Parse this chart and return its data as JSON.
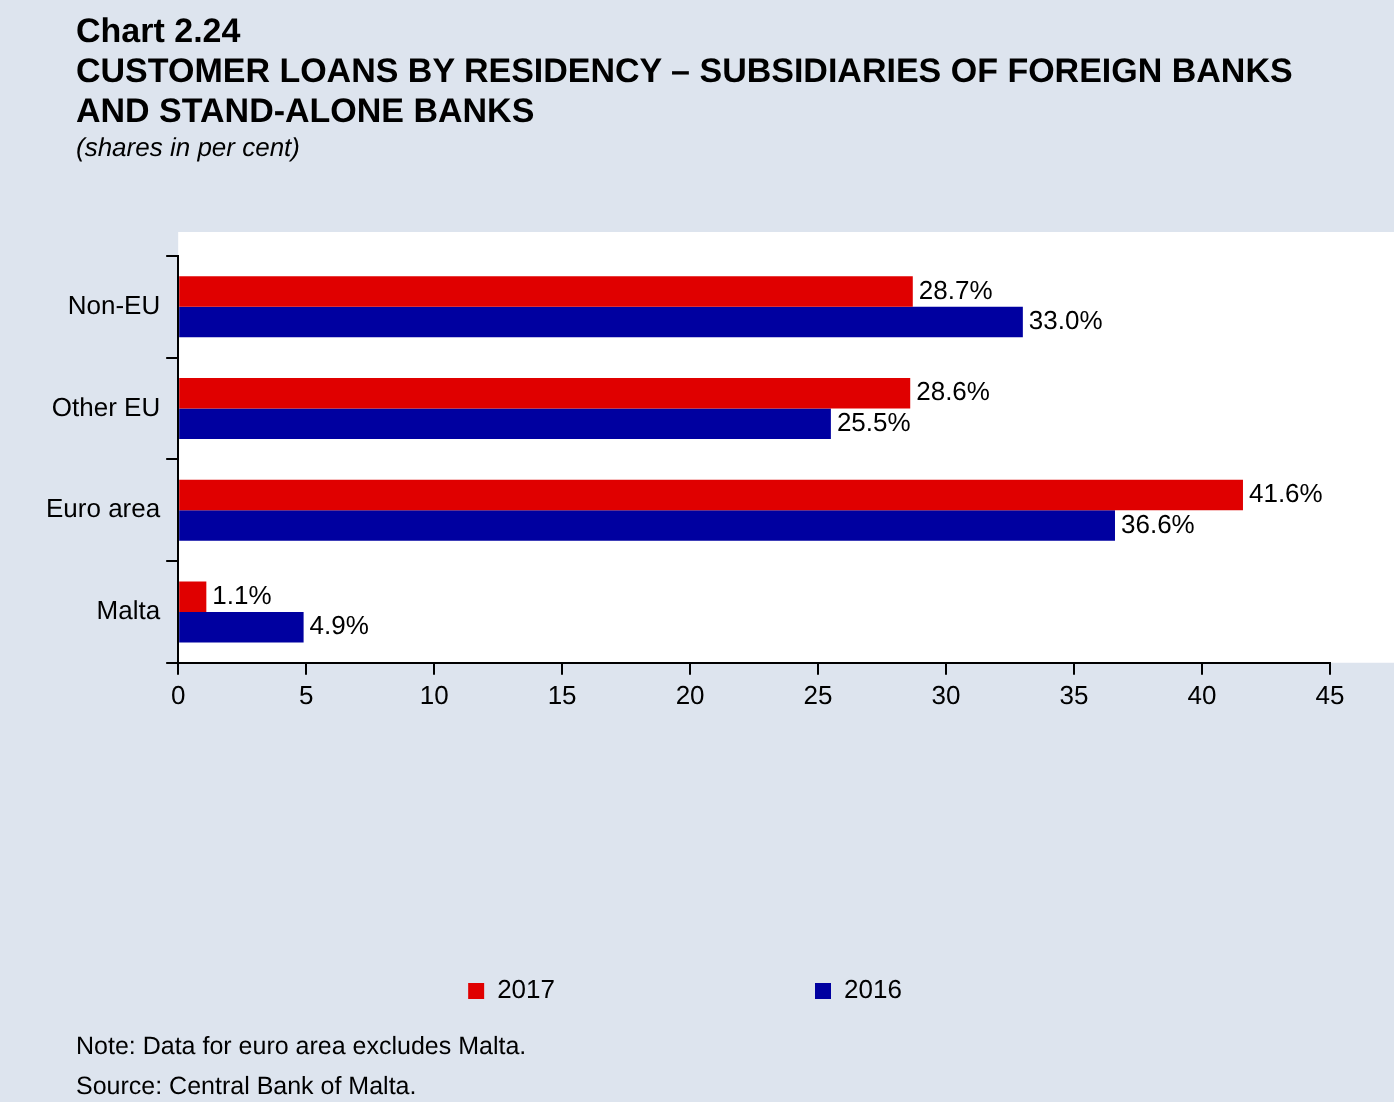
{
  "chart_data": {
    "type": "bar",
    "orientation": "horizontal",
    "title": "Chart 2.24",
    "subtitle": "CUSTOMER LOANS BY RESIDENCY – SUBSIDIARIES OF FOREIGN BANKS AND STAND-ALONE BANKS",
    "xlabel": "(shares in per cent)",
    "categories": [
      "Non-EU",
      "Other EU",
      "Euro area",
      "Malta"
    ],
    "series": [
      {
        "name": "2017",
        "color": "#e00000",
        "values": [
          28.7,
          28.6,
          41.6,
          1.1
        ],
        "value_labels": [
          "28.7%",
          "28.6%",
          "41.6%",
          "1.1%"
        ]
      },
      {
        "name": "2016",
        "color": "#0000a0",
        "values": [
          33.0,
          25.5,
          36.6,
          4.9
        ],
        "value_labels": [
          "33.0%",
          "25.5%",
          "36.6%",
          "4.9%"
        ]
      }
    ],
    "xlim": [
      0,
      45
    ],
    "xticks": [
      0,
      5,
      10,
      15,
      20,
      25,
      30,
      35,
      40,
      45
    ],
    "grid": false,
    "legend": "bottom",
    "annotations": [
      "Note: Data for euro area excludes Malta.",
      "Source: Central Bank of Malta."
    ]
  }
}
